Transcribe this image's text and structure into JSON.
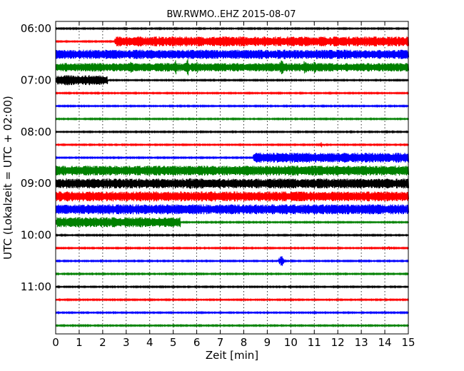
{
  "chart_data": {
    "type": "line",
    "title": "BW.RWMO..EHZ 2015-08-07",
    "xlabel": "Zeit  [min]",
    "ylabel": "UTC (Lokalzeit = UTC + 02:00)",
    "xlim": [
      0,
      15
    ],
    "x_ticks": [
      "0",
      "1",
      "2",
      "3",
      "4",
      "5",
      "6",
      "7",
      "8",
      "9",
      "10",
      "11",
      "12",
      "13",
      "14",
      "15"
    ],
    "y_tick_labels": [
      "06:00",
      "07:00",
      "08:00",
      "09:00",
      "10:00",
      "11:00"
    ],
    "grid": true,
    "colors": [
      "#000000",
      "#ff0000",
      "#0000ff",
      "#008000"
    ],
    "traces": [
      {
        "start": "06:00",
        "color": "#000000",
        "base": 0.8,
        "segments": []
      },
      {
        "start": "06:15",
        "color": "#ff0000",
        "base": 0.8,
        "segments": [
          {
            "from": 2.5,
            "to": 15,
            "amp": 7
          }
        ]
      },
      {
        "start": "06:30",
        "color": "#0000ff",
        "base": 6.5,
        "segments": []
      },
      {
        "start": "06:45",
        "color": "#008000",
        "base": 6,
        "segments": [],
        "spikes": [
          [
            3.2,
            12
          ],
          [
            4.0,
            8
          ],
          [
            5.1,
            13
          ],
          [
            5.6,
            14
          ],
          [
            6.0,
            9
          ],
          [
            9.6,
            14
          ],
          [
            10.6,
            15
          ],
          [
            11.0,
            13
          ],
          [
            13.2,
            9
          ],
          [
            13.8,
            8
          ]
        ]
      },
      {
        "start": "07:00",
        "color": "#000000",
        "base": 0.8,
        "segments": [
          {
            "from": 0,
            "to": 2.2,
            "amp": 7
          }
        ]
      },
      {
        "start": "07:15",
        "color": "#ff0000",
        "base": 0.8,
        "segments": []
      },
      {
        "start": "07:30",
        "color": "#0000ff",
        "base": 0.8,
        "segments": []
      },
      {
        "start": "07:45",
        "color": "#008000",
        "base": 0.8,
        "segments": []
      },
      {
        "start": "08:00",
        "color": "#000000",
        "base": 0.8,
        "segments": []
      },
      {
        "start": "08:15",
        "color": "#ff0000",
        "base": 0.8,
        "segments": [],
        "spikes": [
          [
            11.3,
            4
          ]
        ]
      },
      {
        "start": "08:30",
        "color": "#0000ff",
        "base": 0.8,
        "segments": [
          {
            "from": 8.4,
            "to": 15,
            "amp": 7
          }
        ]
      },
      {
        "start": "08:45",
        "color": "#008000",
        "base": 7,
        "segments": []
      },
      {
        "start": "09:00",
        "color": "#000000",
        "base": 7,
        "segments": [],
        "spikes": [
          [
            5.7,
            10
          ]
        ]
      },
      {
        "start": "09:15",
        "color": "#ff0000",
        "base": 7,
        "segments": []
      },
      {
        "start": "09:30",
        "color": "#0000ff",
        "base": 7,
        "segments": [],
        "spikes": [
          [
            2.4,
            9
          ]
        ]
      },
      {
        "start": "09:45",
        "color": "#008000",
        "base": 0.8,
        "segments": [
          {
            "from": 0,
            "to": 5.3,
            "amp": 7
          }
        ]
      },
      {
        "start": "10:00",
        "color": "#000000",
        "base": 0.8,
        "segments": []
      },
      {
        "start": "10:15",
        "color": "#ff0000",
        "base": 0.8,
        "segments": [],
        "spikes": [
          [
            14.2,
            3
          ]
        ]
      },
      {
        "start": "10:30",
        "color": "#0000ff",
        "base": 0.8,
        "segments": [],
        "spikes": [
          [
            9.6,
            11
          ]
        ]
      },
      {
        "start": "10:45",
        "color": "#008000",
        "base": 0.8,
        "segments": []
      },
      {
        "start": "11:00",
        "color": "#000000",
        "base": 0.8,
        "segments": []
      },
      {
        "start": "11:15",
        "color": "#ff0000",
        "base": 0.8,
        "segments": []
      },
      {
        "start": "11:30",
        "color": "#0000ff",
        "base": 0.8,
        "segments": [],
        "spikes": [
          [
            14.0,
            2
          ]
        ]
      },
      {
        "start": "11:45",
        "color": "#008000",
        "base": 0.8,
        "segments": []
      }
    ]
  }
}
